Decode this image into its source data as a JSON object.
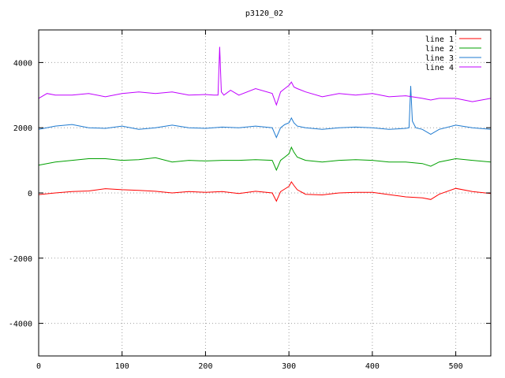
{
  "chart_data": {
    "type": "line",
    "title": "p3120_02",
    "xlabel": "",
    "ylabel": "",
    "xlim": [
      0,
      542
    ],
    "ylim": [
      -5000,
      5000
    ],
    "x_ticks": [
      0,
      100,
      200,
      300,
      400,
      500
    ],
    "y_ticks": [
      -4000,
      -2000,
      0,
      2000,
      4000
    ],
    "grid": true,
    "legend_position": "top-right",
    "series": [
      {
        "name": "line 1",
        "color": "#ff0000",
        "x": [
          0,
          20,
          40,
          60,
          80,
          100,
          120,
          140,
          160,
          180,
          200,
          220,
          240,
          260,
          280,
          285,
          290,
          295,
          300,
          303,
          306,
          310,
          320,
          340,
          360,
          380,
          400,
          420,
          440,
          460,
          470,
          480,
          500,
          520,
          542
        ],
        "y": [
          -50,
          0,
          40,
          60,
          130,
          100,
          80,
          50,
          0,
          40,
          20,
          40,
          -20,
          50,
          0,
          -250,
          40,
          120,
          200,
          340,
          230,
          100,
          -40,
          -60,
          0,
          20,
          20,
          -50,
          -120,
          -150,
          -200,
          -40,
          140,
          40,
          -20
        ]
      },
      {
        "name": "line 2",
        "color": "#00a000",
        "x": [
          0,
          20,
          40,
          60,
          80,
          100,
          120,
          140,
          160,
          180,
          200,
          220,
          240,
          260,
          280,
          285,
          290,
          295,
          300,
          303,
          306,
          310,
          320,
          340,
          360,
          380,
          400,
          420,
          440,
          460,
          470,
          480,
          500,
          520,
          542
        ],
        "y": [
          850,
          950,
          1000,
          1050,
          1050,
          1000,
          1020,
          1080,
          950,
          1000,
          980,
          1000,
          1000,
          1020,
          1000,
          700,
          1000,
          1100,
          1200,
          1400,
          1250,
          1100,
          1000,
          950,
          1000,
          1020,
          1000,
          950,
          950,
          900,
          820,
          950,
          1050,
          1000,
          950
        ]
      },
      {
        "name": "line 3",
        "color": "#1e7ad0",
        "x": [
          0,
          20,
          40,
          60,
          80,
          100,
          120,
          140,
          160,
          180,
          200,
          220,
          240,
          260,
          280,
          285,
          290,
          295,
          300,
          303,
          306,
          310,
          320,
          340,
          360,
          380,
          400,
          420,
          440,
          444,
          446,
          448,
          452,
          460,
          470,
          480,
          500,
          520,
          542
        ],
        "y": [
          1950,
          2050,
          2100,
          2000,
          1980,
          2050,
          1950,
          2000,
          2080,
          2000,
          1980,
          2020,
          2000,
          2050,
          2000,
          1700,
          2000,
          2100,
          2150,
          2300,
          2150,
          2050,
          2000,
          1950,
          2000,
          2020,
          2000,
          1950,
          1980,
          2000,
          3280,
          2200,
          2000,
          1950,
          1800,
          1950,
          2080,
          2000,
          1950
        ]
      },
      {
        "name": "line 4",
        "color": "#c000ff",
        "x": [
          0,
          10,
          20,
          40,
          60,
          80,
          100,
          120,
          140,
          160,
          180,
          200,
          210,
          215,
          217,
          219,
          222,
          230,
          240,
          260,
          280,
          285,
          290,
          295,
          300,
          303,
          306,
          310,
          320,
          340,
          360,
          380,
          400,
          420,
          440,
          460,
          470,
          480,
          500,
          520,
          542
        ],
        "y": [
          2900,
          3050,
          3000,
          3000,
          3050,
          2950,
          3050,
          3100,
          3050,
          3100,
          3000,
          3020,
          3000,
          3000,
          4480,
          3100,
          3000,
          3150,
          3000,
          3200,
          3050,
          2700,
          3100,
          3200,
          3300,
          3400,
          3250,
          3200,
          3100,
          2950,
          3050,
          3000,
          3050,
          2950,
          2980,
          2900,
          2850,
          2900,
          2900,
          2800,
          2900
        ]
      }
    ]
  }
}
